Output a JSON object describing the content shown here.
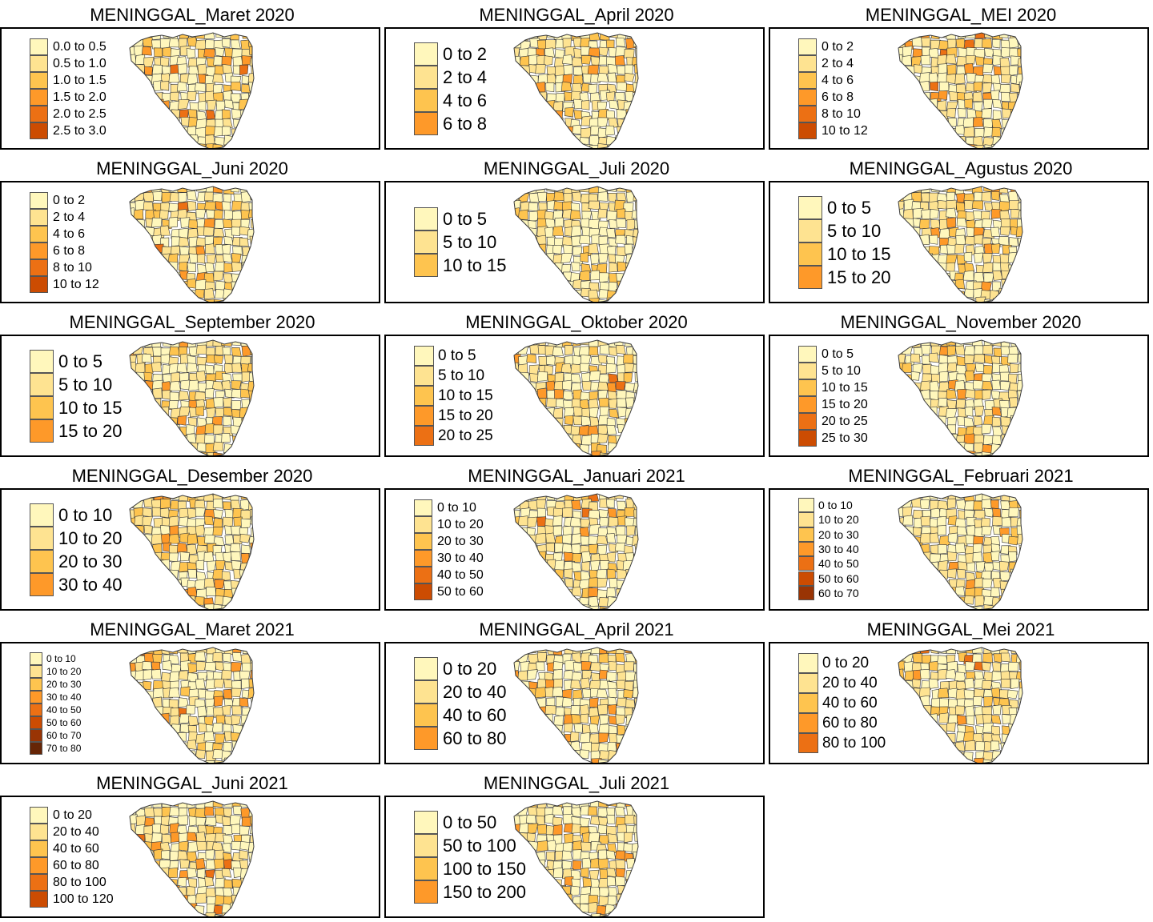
{
  "palette": [
    "#fff7bc",
    "#fee391",
    "#fec44f",
    "#fe9929",
    "#ec7014",
    "#cc4c02",
    "#993404",
    "#662506"
  ],
  "map_outline_color": "#3a3a3a",
  "panels": [
    {
      "title": "MENINGGAL_Maret 2020",
      "legend": [
        "0.0 to 0.5",
        "0.5 to 1.0",
        "1.0 to 1.5",
        "1.5 to 2.0",
        "2.0 to 2.5",
        "2.5 to 3.0"
      ],
      "legend_size": "small"
    },
    {
      "title": "MENINGGAL_April 2020",
      "legend": [
        "0 to 2",
        "2 to 4",
        "4 to 6",
        "6 to 8"
      ],
      "legend_size": "large"
    },
    {
      "title": "MENINGGAL_MEI 2020",
      "legend": [
        "0 to 2",
        "2 to 4",
        "4 to 6",
        "6 to 8",
        "8 to 10",
        "10 to 12"
      ],
      "legend_size": "small"
    },
    {
      "title": "MENINGGAL_Juni 2020",
      "legend": [
        "0 to 2",
        "2 to 4",
        "4 to 6",
        "6 to 8",
        "8 to 10",
        "10 to 12"
      ],
      "legend_size": "small"
    },
    {
      "title": "MENINGGAL_Juli 2020",
      "legend": [
        "0 to 5",
        "5 to 10",
        "10 to 15"
      ],
      "legend_size": "large"
    },
    {
      "title": "MENINGGAL_Agustus 2020",
      "legend": [
        "0 to 5",
        "5 to 10",
        "10 to 15",
        "15 to 20"
      ],
      "legend_size": "large"
    },
    {
      "title": "MENINGGAL_September 2020",
      "legend": [
        "0 to 5",
        "5 to 10",
        "10 to 15",
        "15 to 20"
      ],
      "legend_size": "large"
    },
    {
      "title": "MENINGGAL_Oktober 2020",
      "legend": [
        "0 to 5",
        "5 to 10",
        "10 to 15",
        "15 to 20",
        "20 to 25"
      ],
      "legend_size": "medium"
    },
    {
      "title": "MENINGGAL_November 2020",
      "legend": [
        "0 to 5",
        "5 to 10",
        "10 to 15",
        "15 to 20",
        "20 to 25",
        "25 to 30"
      ],
      "legend_size": "small"
    },
    {
      "title": "MENINGGAL_Desember 2020",
      "legend": [
        "0 to 10",
        "10 to 20",
        "20 to 30",
        "30 to 40"
      ],
      "legend_size": "large"
    },
    {
      "title": "MENINGGAL_Januari 2021",
      "legend": [
        "0 to 10",
        "10 to 20",
        "20 to 30",
        "30 to 40",
        "40 to 50",
        "50 to 60"
      ],
      "legend_size": "small"
    },
    {
      "title": "MENINGGAL_Februari 2021",
      "legend": [
        "0 to 10",
        "10 to 20",
        "20 to 30",
        "30 to 40",
        "40 to 50",
        "50 to 60",
        "60 to 70"
      ],
      "legend_size": "xsmall"
    },
    {
      "title": "MENINGGAL_Maret 2021",
      "legend": [
        "0 to 10",
        "10 to 20",
        "20 to 30",
        "30 to 40",
        "40 to 50",
        "50 to 60",
        "60 to 70",
        "70 to 80"
      ],
      "legend_size": "tiny"
    },
    {
      "title": "MENINGGAL_April 2021",
      "legend": [
        "0 to 20",
        "20 to 40",
        "40 to 60",
        "60 to 80"
      ],
      "legend_size": "large"
    },
    {
      "title": "MENINGGAL_Mei 2021",
      "legend": [
        "0 to 20",
        "20 to 40",
        "40 to 60",
        "60 to 80",
        "80 to 100"
      ],
      "legend_size": "medium"
    },
    {
      "title": "MENINGGAL_Juni 2021",
      "legend": [
        "0 to 20",
        "20 to 40",
        "40 to 60",
        "60 to 80",
        "80 to 100",
        "100 to 120"
      ],
      "legend_size": "small"
    },
    {
      "title": "MENINGGAL_Juli 2021",
      "legend": [
        "0 to 50",
        "50 to 100",
        "100 to 150",
        "150 to 200"
      ],
      "legend_size": "large"
    }
  ]
}
